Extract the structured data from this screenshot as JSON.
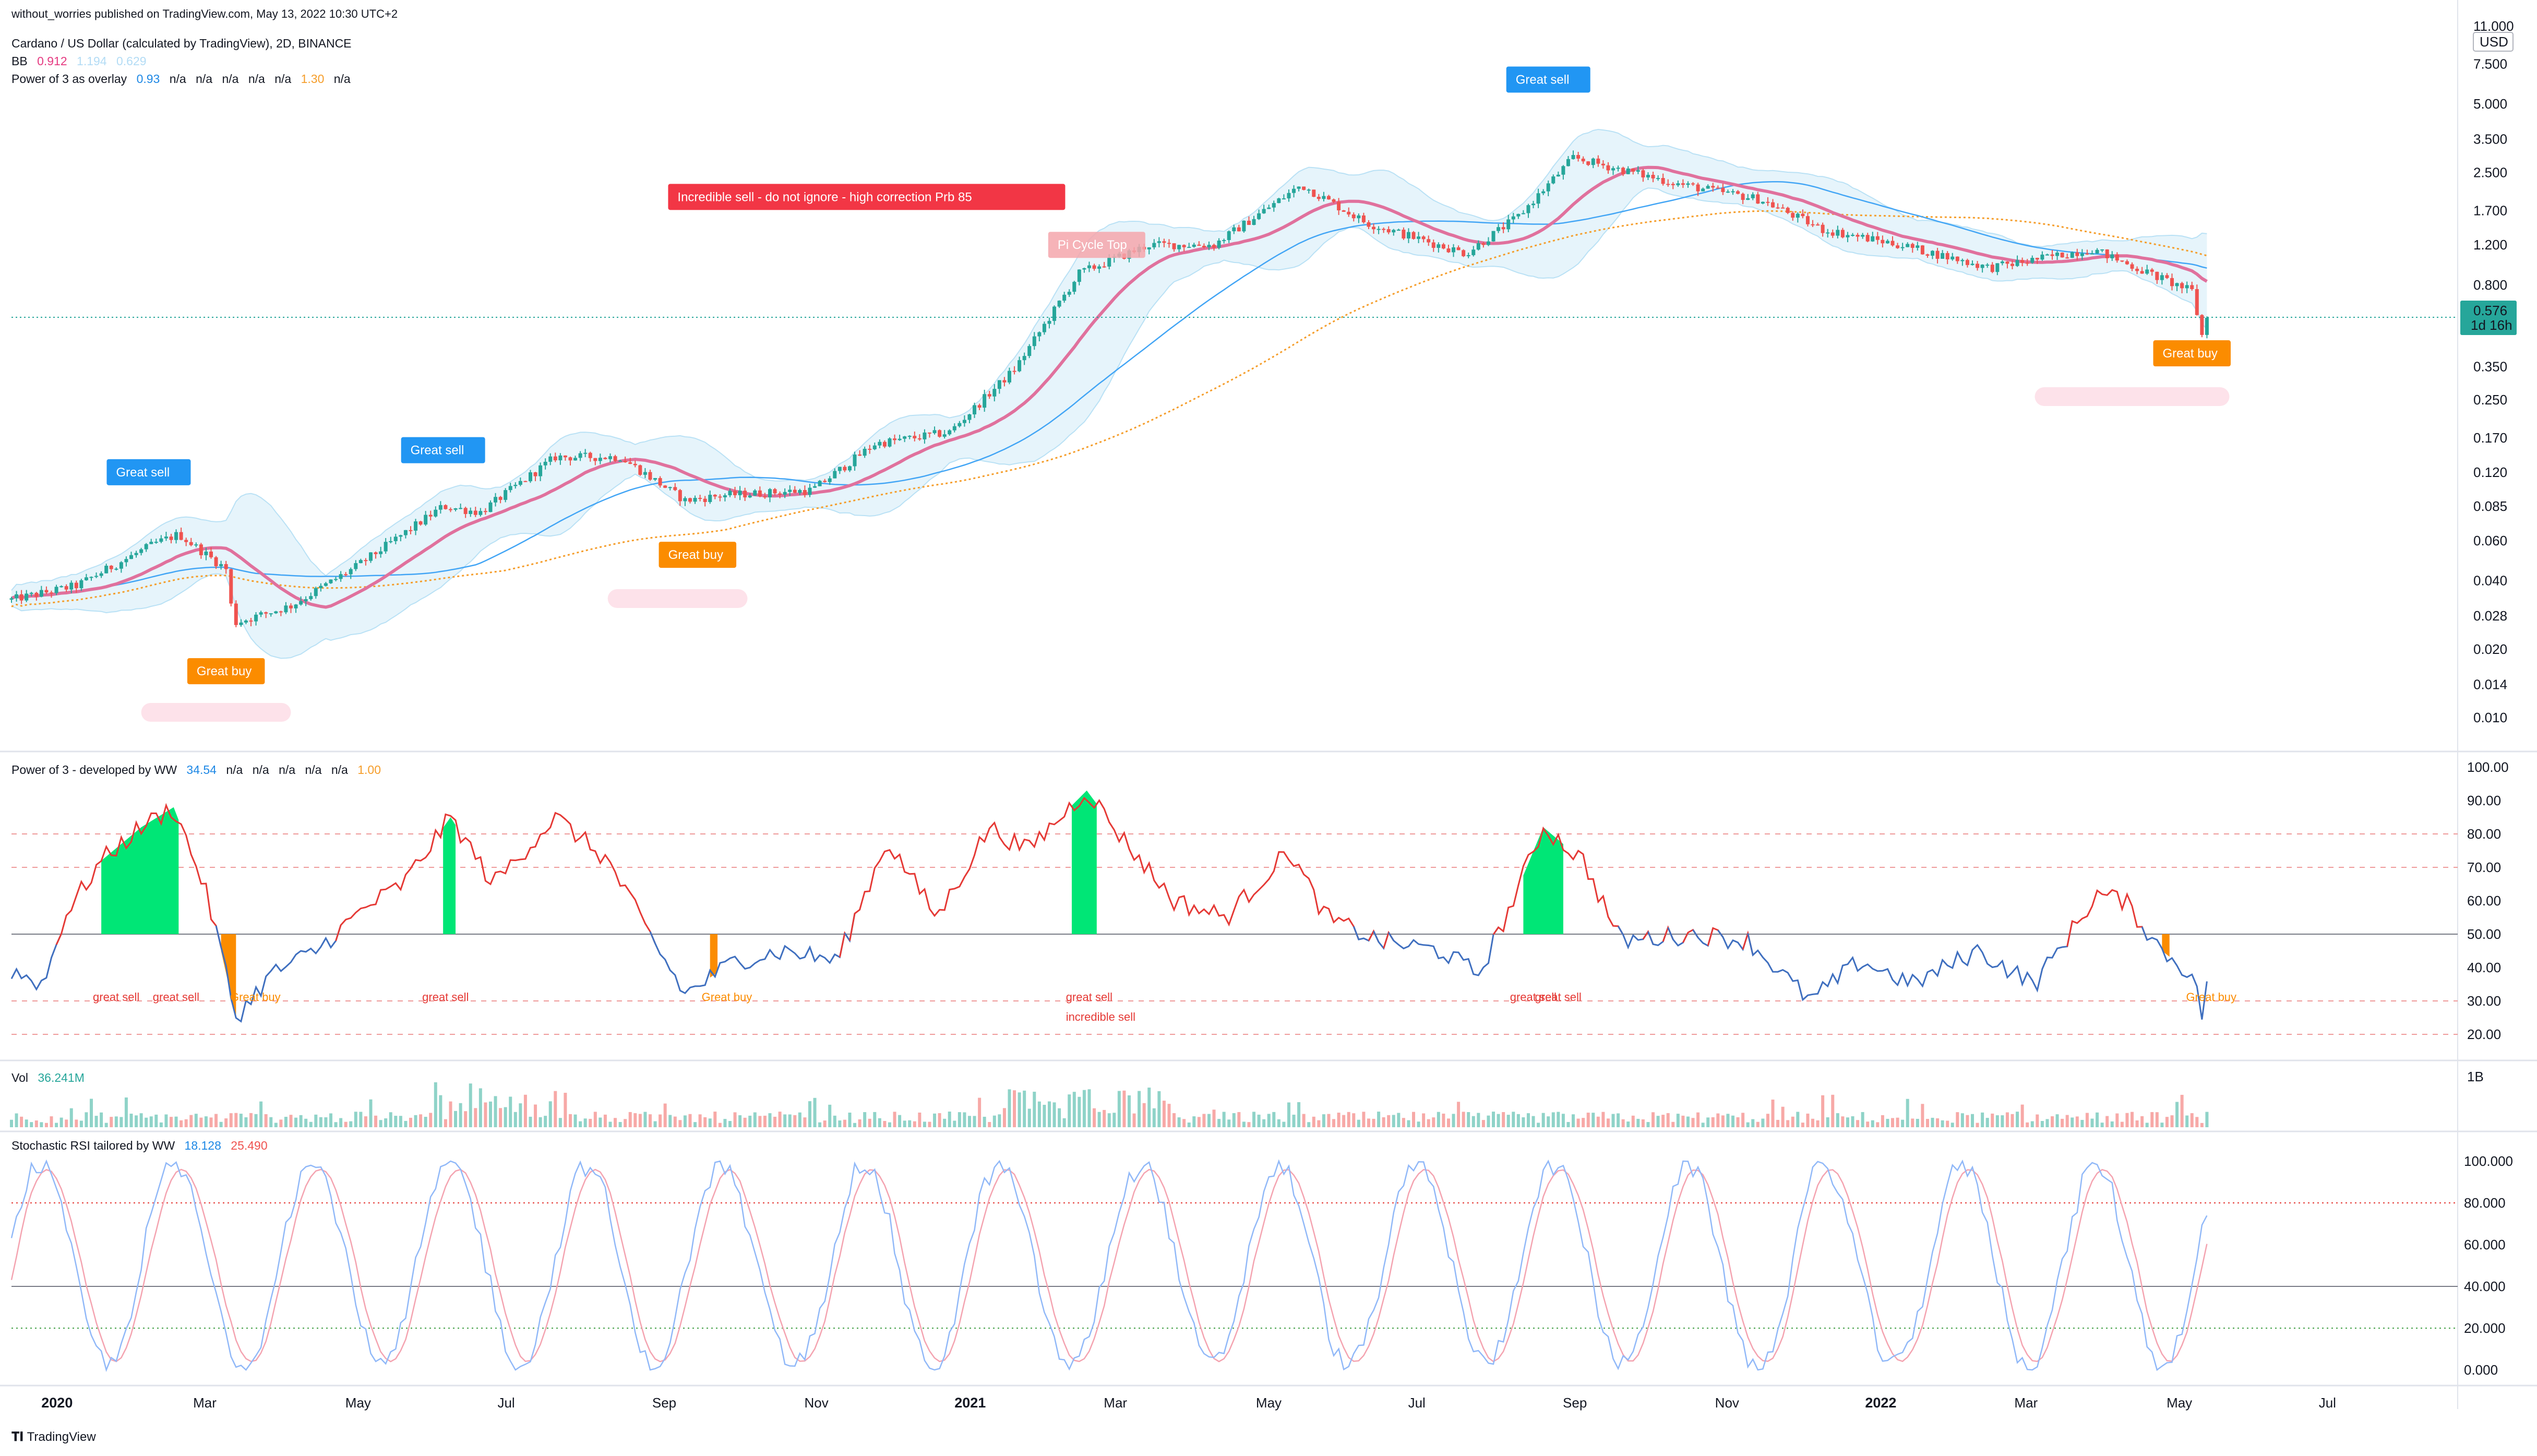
{
  "header": {
    "published": "without_worries published on TradingView.com, May 13, 2022 10:30 UTC+2",
    "symbol": "Cardano / US Dollar (calculated by TradingView), 2D, BINANCE",
    "bb_label": "BB",
    "bb_values": [
      "0.912",
      "1.194",
      "0.629"
    ],
    "overlay_label": "Power of 3 as overlay",
    "overlay_values": [
      "0.93",
      "n/a",
      "n/a",
      "n/a",
      "n/a",
      "n/a",
      "1.30",
      "n/a"
    ]
  },
  "brand": "TradingView",
  "colors": {
    "up": "#26a69a",
    "down": "#ef5350",
    "bb_basis": "#e0719d",
    "bb_band": "#5fb8e8",
    "bb_fill": "#e3f3fb",
    "ma_blue": "#42a5f5",
    "ma_orange": "#f59d2a",
    "great_sell": "#2196f3",
    "great_buy": "#fb8c00",
    "incredible_sell": "#f23645",
    "p3_red": "#e53935",
    "p3_blue": "#3f6fbf",
    "p3_fill_green": "#00e676",
    "p3_fill_orange": "#fb8c00",
    "stoch_k": "#90b8f8",
    "stoch_d": "#f4a3b0"
  },
  "chart_data": [
    {
      "type": "candlestick",
      "title": "Cardano / US Dollar (calculated by TradingView), 2D, BINANCE",
      "y_scale": "log",
      "y_unit": "USD",
      "y_ticks": [
        "11.000",
        "7.500",
        "5.000",
        "3.500",
        "2.500",
        "1.700",
        "1.200",
        "0.800",
        "0.576",
        "0.350",
        "0.250",
        "0.170",
        "0.120",
        "0.085",
        "0.060",
        "0.040",
        "0.028",
        "0.020",
        "0.014",
        "0.010"
      ],
      "last_price": "0.576",
      "last_price_countdown": "1d 16h",
      "x_ticks": [
        "2020",
        "Mar",
        "May",
        "Jul",
        "Sep",
        "Nov",
        "2021",
        "Mar",
        "May",
        "Jul",
        "Sep",
        "Nov",
        "2022",
        "Mar",
        "May",
        "Jul"
      ],
      "price_anchors": [
        {
          "date": "2019-12-15",
          "price": 0.033
        },
        {
          "date": "2020-01-10",
          "price": 0.038
        },
        {
          "date": "2020-02-10",
          "price": 0.058
        },
        {
          "date": "2020-02-20",
          "price": 0.064
        },
        {
          "date": "2020-03-10",
          "price": 0.045
        },
        {
          "date": "2020-03-13",
          "price": 0.026
        },
        {
          "date": "2020-04-05",
          "price": 0.031
        },
        {
          "date": "2020-05-01",
          "price": 0.046
        },
        {
          "date": "2020-06-05",
          "price": 0.085
        },
        {
          "date": "2020-06-20",
          "price": 0.08
        },
        {
          "date": "2020-07-20",
          "price": 0.14
        },
        {
          "date": "2020-08-15",
          "price": 0.14
        },
        {
          "date": "2020-09-10",
          "price": 0.09
        },
        {
          "date": "2020-09-25",
          "price": 0.095
        },
        {
          "date": "2020-10-31",
          "price": 0.1
        },
        {
          "date": "2020-11-25",
          "price": 0.16
        },
        {
          "date": "2020-12-25",
          "price": 0.18
        },
        {
          "date": "2021-01-20",
          "price": 0.34
        },
        {
          "date": "2021-02-15",
          "price": 0.9
        },
        {
          "date": "2021-03-15",
          "price": 1.2
        },
        {
          "date": "2021-04-10",
          "price": 1.2
        },
        {
          "date": "2021-05-15",
          "price": 2.2
        },
        {
          "date": "2021-06-10",
          "price": 1.5
        },
        {
          "date": "2021-07-20",
          "price": 1.1
        },
        {
          "date": "2021-08-10",
          "price": 1.6
        },
        {
          "date": "2021-09-01",
          "price": 2.9
        },
        {
          "date": "2021-10-15",
          "price": 2.2
        },
        {
          "date": "2021-11-15",
          "price": 1.9
        },
        {
          "date": "2021-12-10",
          "price": 1.4
        },
        {
          "date": "2022-01-10",
          "price": 1.2
        },
        {
          "date": "2022-02-15",
          "price": 0.95
        },
        {
          "date": "2022-03-28",
          "price": 1.15
        },
        {
          "date": "2022-04-25",
          "price": 0.85
        },
        {
          "date": "2022-05-07",
          "price": 0.75
        },
        {
          "date": "2022-05-11",
          "price": 0.48
        },
        {
          "date": "2022-05-13",
          "price": 0.576
        }
      ],
      "annotations": [
        {
          "text": "Great sell",
          "kind": "great_sell",
          "date": "2020-02-08",
          "price": 0.12
        },
        {
          "text": "Great buy",
          "kind": "great_buy",
          "date": "2020-03-10",
          "price": 0.016
        },
        {
          "text": "Great sell",
          "kind": "great_sell",
          "date": "2020-06-05",
          "price": 0.15
        },
        {
          "text": "Great buy",
          "kind": "great_buy",
          "date": "2020-09-15",
          "price": 0.052
        },
        {
          "text": "Incredible sell - do not ignore - high correction Prb   85",
          "kind": "incredible_sell",
          "date": "2021-02-01",
          "price": 1.95
        },
        {
          "text": "Pi Cycle Top",
          "kind": "pi_cycle",
          "date": "2021-02-22",
          "price": 1.2
        },
        {
          "text": "Great sell",
          "kind": "great_sell",
          "date": "2021-08-22",
          "price": 6.4
        },
        {
          "text": "Great buy",
          "kind": "great_buy",
          "date": "2022-05-07",
          "price": 0.4
        }
      ]
    },
    {
      "type": "line",
      "title": "Power of 3 - developed by WW",
      "values_label": [
        "34.54",
        "n/a",
        "n/a",
        "n/a",
        "n/a",
        "n/a",
        "1.00"
      ],
      "ylim": [
        10,
        100
      ],
      "y_ticks": [
        "100.00",
        "90.00",
        "80.00",
        "70.00",
        "60.00",
        "50.00",
        "40.00",
        "30.00",
        "20.00"
      ],
      "signal_labels": [
        {
          "text": "great sell",
          "date": "2020-01-25"
        },
        {
          "text": "great sell",
          "date": "2020-02-18"
        },
        {
          "text": "Great buy",
          "date": "2020-03-20"
        },
        {
          "text": "great sell",
          "date": "2020-06-05"
        },
        {
          "text": "Great buy",
          "date": "2020-09-25"
        },
        {
          "text": "great sell",
          "date": "2021-02-18"
        },
        {
          "text": "incredible sell",
          "date": "2021-02-18"
        },
        {
          "text": "great sell",
          "date": "2021-08-15"
        },
        {
          "text": "great sell",
          "date": "2021-08-25"
        },
        {
          "text": "Great buy",
          "date": "2022-05-13"
        }
      ],
      "series_points": [
        {
          "date": "2019-12-15",
          "value": 39
        },
        {
          "date": "2019-12-28",
          "value": 35
        },
        {
          "date": "2020-01-05",
          "value": 55
        },
        {
          "date": "2020-01-20",
          "value": 72
        },
        {
          "date": "2020-02-05",
          "value": 82
        },
        {
          "date": "2020-02-18",
          "value": 88
        },
        {
          "date": "2020-03-01",
          "value": 65
        },
        {
          "date": "2020-03-08",
          "value": 45
        },
        {
          "date": "2020-03-14",
          "value": 25
        },
        {
          "date": "2020-03-28",
          "value": 38
        },
        {
          "date": "2020-04-15",
          "value": 45
        },
        {
          "date": "2020-05-05",
          "value": 58
        },
        {
          "date": "2020-05-20",
          "value": 65
        },
        {
          "date": "2020-06-08",
          "value": 85
        },
        {
          "date": "2020-06-25",
          "value": 65
        },
        {
          "date": "2020-07-20",
          "value": 85
        },
        {
          "date": "2020-08-10",
          "value": 72
        },
        {
          "date": "2020-08-25",
          "value": 52
        },
        {
          "date": "2020-09-10",
          "value": 32
        },
        {
          "date": "2020-09-30",
          "value": 42
        },
        {
          "date": "2020-10-20",
          "value": 45
        },
        {
          "date": "2020-11-10",
          "value": 42
        },
        {
          "date": "2020-11-30",
          "value": 78
        },
        {
          "date": "2020-12-20",
          "value": 55
        },
        {
          "date": "2021-01-10",
          "value": 82
        },
        {
          "date": "2021-01-25",
          "value": 75
        },
        {
          "date": "2021-02-18",
          "value": 93
        },
        {
          "date": "2021-03-05",
          "value": 78
        },
        {
          "date": "2021-03-25",
          "value": 60
        },
        {
          "date": "2021-04-15",
          "value": 55
        },
        {
          "date": "2021-05-10",
          "value": 75
        },
        {
          "date": "2021-05-25",
          "value": 55
        },
        {
          "date": "2021-06-15",
          "value": 48
        },
        {
          "date": "2021-07-10",
          "value": 45
        },
        {
          "date": "2021-07-25",
          "value": 38
        },
        {
          "date": "2021-08-05",
          "value": 55
        },
        {
          "date": "2021-08-20",
          "value": 82
        },
        {
          "date": "2021-09-05",
          "value": 72
        },
        {
          "date": "2021-09-20",
          "value": 48
        },
        {
          "date": "2021-10-20",
          "value": 50
        },
        {
          "date": "2021-11-10",
          "value": 48
        },
        {
          "date": "2021-12-05",
          "value": 30
        },
        {
          "date": "2021-12-25",
          "value": 42
        },
        {
          "date": "2022-01-15",
          "value": 35
        },
        {
          "date": "2022-02-10",
          "value": 45
        },
        {
          "date": "2022-03-05",
          "value": 35
        },
        {
          "date": "2022-03-30",
          "value": 62
        },
        {
          "date": "2022-04-10",
          "value": 60
        },
        {
          "date": "2022-04-25",
          "value": 45
        },
        {
          "date": "2022-05-07",
          "value": 38
        },
        {
          "date": "2022-05-11",
          "value": 26
        },
        {
          "date": "2022-05-13",
          "value": 35
        }
      ]
    },
    {
      "type": "bar",
      "title": "Vol",
      "last_value": "36.241M",
      "y_ticks": [
        "1B"
      ]
    },
    {
      "type": "line",
      "title": "Stochastic RSI tailored by WW",
      "values_label": [
        "18.128",
        "25.490"
      ],
      "ylim": [
        0,
        100
      ],
      "y_ticks": [
        "100.000",
        "80.000",
        "60.000",
        "40.000",
        "20.000",
        "0.000"
      ],
      "series": [
        {
          "name": "K"
        },
        {
          "name": "D"
        }
      ]
    }
  ]
}
